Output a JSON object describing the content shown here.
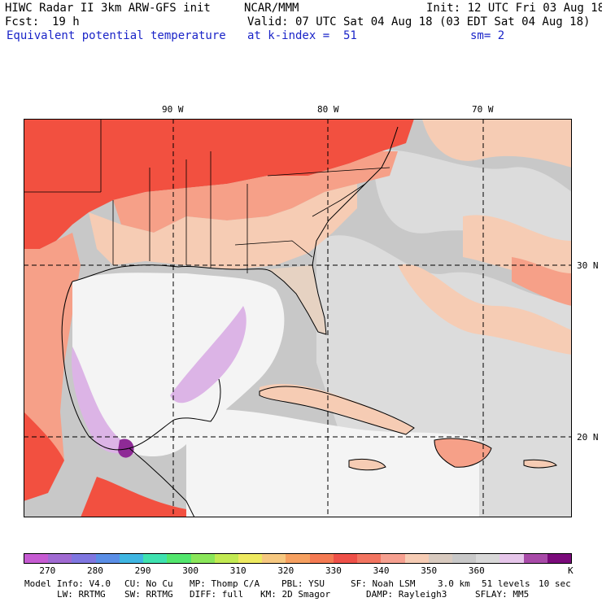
{
  "header": {
    "title": "HIWC Radar II 3km ARW-GFS init",
    "org": "NCAR/MMM",
    "init": "Init: 12 UTC Fri 03 Aug 18",
    "fcst_label": "Fcst:",
    "fcst_value": "19 h",
    "valid": "Valid: 07 UTC Sat 04 Aug 18 (03 EDT Sat 04 Aug 18)",
    "field": "Equivalent potential temperature",
    "level": "at k-index =  51",
    "smooth": "sm= 2"
  },
  "axes": {
    "lon_labels": [
      "90 W",
      "80 W",
      "70 W"
    ],
    "lat_labels": [
      "30 N",
      "20 N"
    ]
  },
  "colorbar": {
    "colors": [
      "#c65bd2",
      "#a06ad2",
      "#7f76e0",
      "#5a8ee6",
      "#3fb6e2",
      "#3fe2b0",
      "#52e66d",
      "#8ae65a",
      "#c2ea52",
      "#eeea60",
      "#f6c880",
      "#f6a060",
      "#f47a52",
      "#ee5048",
      "#f27460",
      "#f6a090",
      "#f6ccb4",
      "#d8cabf",
      "#c8c8c8",
      "#d8d8d8",
      "#e6c6ea",
      "#a84aa8",
      "#7a0a7a"
    ],
    "tick_labels": [
      "270",
      "280",
      "290",
      "300",
      "310",
      "320",
      "330",
      "340",
      "350",
      "360"
    ],
    "unit": "K"
  },
  "map_colors": {
    "ocean_gray": "#c8c8c8",
    "light_gray": "#dcdcdc",
    "white": "#f4f4f4",
    "red": "#f25040",
    "salmon": "#f6a088",
    "peach": "#f6ccb4",
    "lavender": "#dcb4e6",
    "purple": "#8e2a96",
    "tan": "#e6d2c2"
  },
  "footer": {
    "line1": [
      "Model Info: V4.0",
      "CU: No Cu",
      "MP: Thomp C/A",
      "PBL: YSU",
      "SF: Noah LSM",
      "3.0 km",
      "51 levels",
      "10 sec"
    ],
    "line2": [
      "LW: RRTMG",
      "SW: RRTMG",
      "DIFF: full",
      "KM: 2D Smagor",
      "DAMP: Rayleigh3",
      "SFLAY: MM5"
    ]
  }
}
